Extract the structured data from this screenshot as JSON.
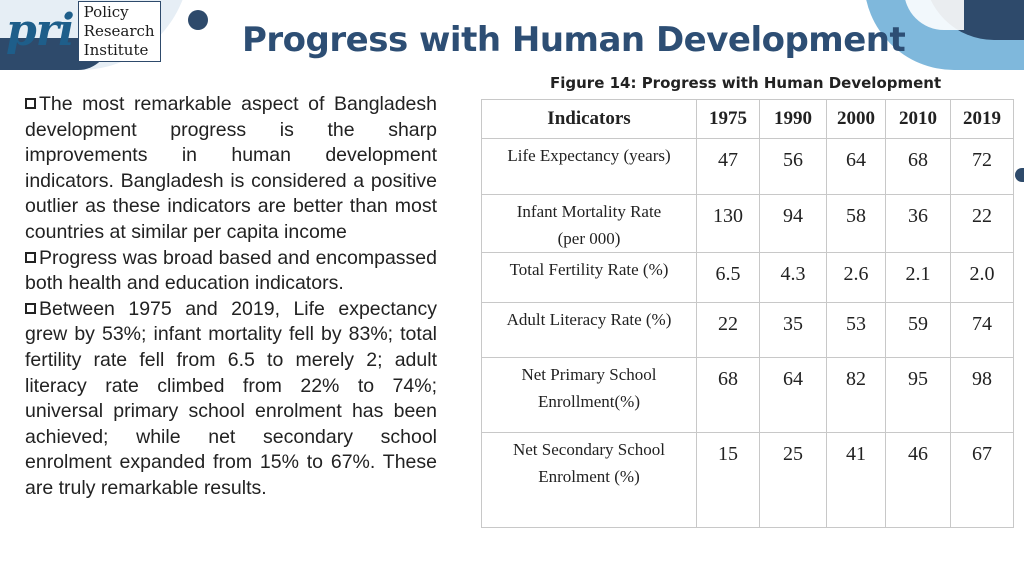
{
  "logo": {
    "mark": "pri",
    "line1": "Policy",
    "line2": "Research",
    "line3": "Institute"
  },
  "title": "Progress with Human Development",
  "paragraphs": [
    "The most remarkable aspect of Bangladesh development progress is the sharp improvements in human development indicators. Bangladesh is considered a positive outlier as these indicators are better than most countries at similar per capita income",
    "Progress was broad based and encompassed both health and education indicators.",
    "Between 1975 and 2019, Life expectancy grew by 53%; infant mortality fell by 83%; total fertility rate fell from 6.5 to merely 2; adult literacy rate climbed from 22% to 74%; universal primary school enrolment has been achieved; while net secondary school enrolment expanded from 15% to 67%.  These are truly remarkable results."
  ],
  "figure": {
    "caption": "Figure 14: Progress with Human Development",
    "headers": [
      "Indicators",
      "1975",
      "1990",
      "2000",
      "2010",
      "2019"
    ],
    "rows": [
      {
        "label_lines": [
          "Life Expectancy (years)"
        ],
        "values": [
          "47",
          "56",
          "64",
          "68",
          "72"
        ]
      },
      {
        "label_lines": [
          "Infant Mortality Rate",
          "(per 000)"
        ],
        "values": [
          "130",
          "94",
          "58",
          "36",
          "22"
        ]
      },
      {
        "label_lines": [
          "Total Fertility Rate (%)"
        ],
        "values": [
          "6.5",
          "4.3",
          "2.6",
          "2.1",
          "2.0"
        ]
      },
      {
        "label_lines": [
          "Adult Literacy Rate (%)"
        ],
        "values": [
          "22",
          "35",
          "53",
          "59",
          "74"
        ]
      },
      {
        "label_lines": [
          "Net Primary School",
          "Enrollment(%)"
        ],
        "values": [
          "68",
          "64",
          "82",
          "95",
          "98"
        ]
      },
      {
        "label_lines": [
          "Net Secondary School",
          "Enrolment (%)"
        ],
        "values": [
          "15",
          "25",
          "41",
          "46",
          "67"
        ]
      }
    ]
  },
  "colors": {
    "title": "#2d4e74",
    "accent_dark": "#2e4a6b",
    "accent_light": "#7fb8dc"
  }
}
